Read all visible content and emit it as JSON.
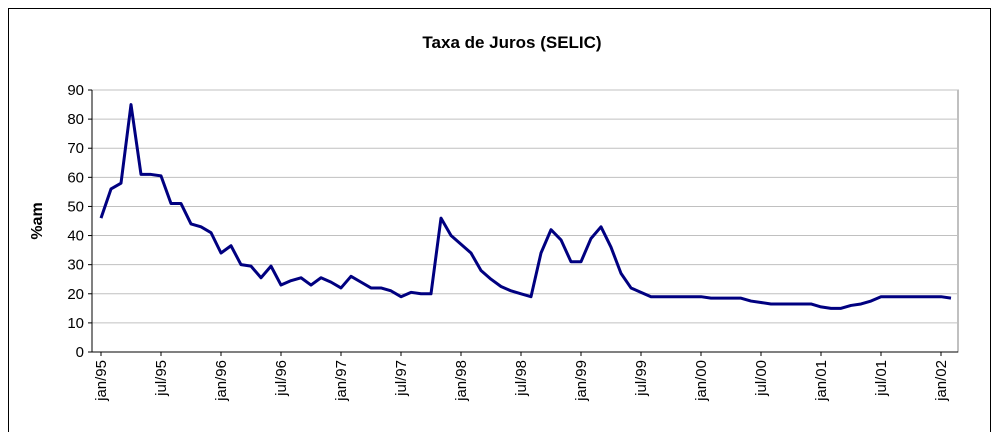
{
  "chart_data": {
    "type": "line",
    "title": "Taxa de Juros (SELIC)",
    "ylabel": "%am",
    "categories": [
      "jan/95",
      null,
      null,
      null,
      null,
      null,
      "jul/95",
      null,
      null,
      null,
      null,
      null,
      "jan/96",
      null,
      null,
      null,
      null,
      null,
      "jul/96",
      null,
      null,
      null,
      null,
      null,
      "jan/97",
      null,
      null,
      null,
      null,
      null,
      "jul/97",
      null,
      null,
      null,
      null,
      null,
      "jan/98",
      null,
      null,
      null,
      null,
      null,
      "jul/98",
      null,
      null,
      null,
      null,
      null,
      "jan/99",
      null,
      null,
      null,
      null,
      null,
      "jul/99",
      null,
      null,
      null,
      null,
      null,
      "jan/00",
      null,
      null,
      null,
      null,
      null,
      "jul/00",
      null,
      null,
      null,
      null,
      null,
      "jan/01",
      null,
      null,
      null,
      null,
      null,
      "jul/01",
      null,
      null,
      null,
      null,
      null,
      "jan/02",
      null
    ],
    "series": [
      {
        "name": "SELIC",
        "color": "#000080",
        "values": [
          46,
          56,
          58,
          85,
          61,
          61,
          60.5,
          51,
          51,
          44,
          43,
          41,
          34,
          36.5,
          30,
          29.5,
          25.5,
          29.5,
          23,
          24.5,
          25.5,
          23,
          25.5,
          24,
          22,
          26,
          24,
          22,
          22,
          21,
          19,
          20.5,
          20,
          20,
          46,
          40,
          37,
          34,
          28,
          25,
          22.5,
          21,
          20,
          19,
          34,
          42,
          38.5,
          31,
          31,
          39,
          43,
          36,
          27,
          22,
          20.5,
          19,
          19,
          19,
          19,
          19,
          19,
          18.5,
          18.5,
          18.5,
          18.5,
          17.5,
          17,
          16.5,
          16.5,
          16.5,
          16.5,
          16.5,
          15.5,
          15,
          15,
          16,
          16.5,
          17.5,
          19,
          19,
          19,
          19,
          19,
          19,
          19,
          18.5
        ]
      }
    ],
    "ylim": [
      0,
      90
    ],
    "yticks": [
      0,
      10,
      20,
      30,
      40,
      50,
      60,
      70,
      80,
      90
    ],
    "grid": true
  }
}
